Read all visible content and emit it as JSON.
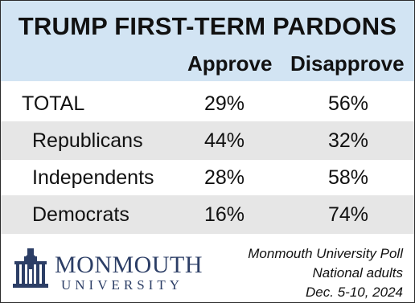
{
  "chart_data": {
    "type": "table",
    "title": "TRUMP FIRST-TERM PARDONS",
    "columns": [
      "Approve",
      "Disapprove"
    ],
    "rows": [
      {
        "label": "TOTAL",
        "approve": "29%",
        "disapprove": "56%"
      },
      {
        "label": "Republicans",
        "approve": "44%",
        "disapprove": "32%"
      },
      {
        "label": "Independents",
        "approve": "28%",
        "disapprove": "58%"
      },
      {
        "label": "Democrats",
        "approve": "16%",
        "disapprove": "74%"
      }
    ]
  },
  "logo": {
    "line1": "MONMOUTH",
    "line2": "UNIVERSITY"
  },
  "source": {
    "line1": "Monmouth University Poll",
    "line2": "National adults",
    "line3": "Dec. 5-10, 2024"
  },
  "colors": {
    "header_bg": "#d2e4f3",
    "shaded_row": "#e6e6e6",
    "logo": "#2c3e66"
  }
}
